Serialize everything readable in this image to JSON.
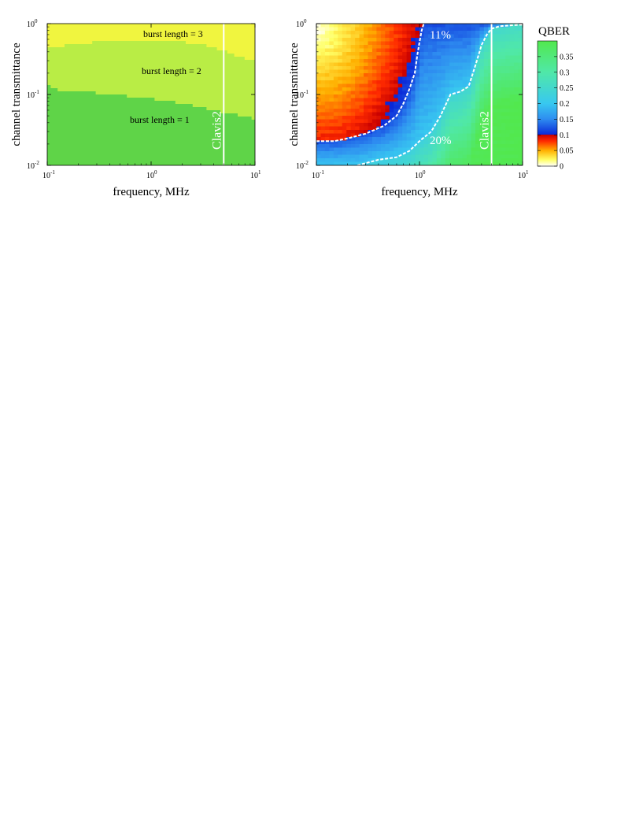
{
  "chart_data": [
    {
      "type": "heatmap",
      "title": "",
      "xlabel": "frequency, MHz",
      "ylabel": "channel transmittance",
      "x_scale": "log",
      "y_scale": "log",
      "xlim": [
        0.1,
        10
      ],
      "ylim": [
        0.01,
        1
      ],
      "x_ticks": [
        {
          "base": "10",
          "exp": "-1"
        },
        {
          "base": "10",
          "exp": "0"
        },
        {
          "base": "10",
          "exp": "1"
        }
      ],
      "y_ticks": [
        {
          "base": "10",
          "exp": "-2"
        },
        {
          "base": "10",
          "exp": "-1"
        },
        {
          "base": "10",
          "exp": "0"
        }
      ],
      "regions": [
        {
          "label": "burst length = 3",
          "color": "#f0f53f"
        },
        {
          "label": "burst length = 2",
          "color": "#b9ed45"
        },
        {
          "label": "burst length = 1",
          "color": "#5fd448"
        }
      ],
      "boundaries": {
        "burst2_burst3": {
          "x": [
            0.1,
            0.15,
            0.3,
            0.6,
            1.0,
            2.0,
            3.0,
            5.0,
            7.0,
            10.0
          ],
          "y": [
            0.45,
            0.5,
            0.55,
            0.6,
            0.55,
            0.55,
            0.5,
            0.4,
            0.33,
            0.3
          ]
        },
        "burst1_burst2": {
          "x": [
            0.1,
            0.12,
            0.2,
            0.4,
            0.8,
            1.5,
            3.0,
            5.0,
            7.0,
            10.0
          ],
          "y": [
            0.13,
            0.115,
            0.11,
            0.1,
            0.09,
            0.08,
            0.065,
            0.055,
            0.05,
            0.045
          ]
        }
      },
      "vertical_line": {
        "x": 5.0,
        "label": "Clavis2"
      }
    },
    {
      "type": "heatmap",
      "title": "",
      "xlabel": "frequency, MHz",
      "ylabel": "channel transmittance",
      "x_scale": "log",
      "y_scale": "log",
      "xlim": [
        0.1,
        10
      ],
      "ylim": [
        0.01,
        1
      ],
      "x_ticks": [
        {
          "base": "10",
          "exp": "-1"
        },
        {
          "base": "10",
          "exp": "0"
        },
        {
          "base": "10",
          "exp": "1"
        }
      ],
      "y_ticks": [
        {
          "base": "10",
          "exp": "-2"
        },
        {
          "base": "10",
          "exp": "-1"
        },
        {
          "base": "10",
          "exp": "0"
        }
      ],
      "colorbar": {
        "label": "QBER",
        "range": [
          0,
          0.4
        ],
        "ticks": [
          "0",
          "0.05",
          "0.1",
          "0.15",
          "0.2",
          "0.25",
          "0.3",
          "0.35"
        ],
        "tick_values": [
          0,
          0.05,
          0.1,
          0.15,
          0.2,
          0.25,
          0.3,
          0.35
        ],
        "stops": [
          {
            "v": 0.0,
            "color": "#ffffff"
          },
          {
            "v": 0.02,
            "color": "#ffff66"
          },
          {
            "v": 0.05,
            "color": "#ffb000"
          },
          {
            "v": 0.08,
            "color": "#ff2a00"
          },
          {
            "v": 0.1,
            "color": "#c80000"
          },
          {
            "v": 0.1001,
            "color": "#0a28d8"
          },
          {
            "v": 0.15,
            "color": "#2e8cf0"
          },
          {
            "v": 0.2,
            "color": "#38c8f0"
          },
          {
            "v": 0.3,
            "color": "#50e8a8"
          },
          {
            "v": 0.4,
            "color": "#52e84e"
          }
        ]
      },
      "contours": [
        {
          "label": "11%",
          "level": 0.11,
          "x": [
            0.1,
            0.15,
            0.2,
            0.3,
            0.45,
            0.6,
            0.7,
            0.8,
            0.9,
            0.95,
            1.0,
            1.05,
            1.1
          ],
          "y": [
            0.022,
            0.022,
            0.024,
            0.028,
            0.036,
            0.05,
            0.075,
            0.12,
            0.2,
            0.35,
            0.55,
            0.8,
            1.0
          ]
        },
        {
          "label": "20%",
          "level": 0.2,
          "x": [
            0.25,
            0.4,
            0.6,
            0.8,
            1.0,
            1.3,
            1.6,
            2.0,
            2.5,
            3.0,
            3.3,
            3.6,
            4.0,
            4.5,
            5.0,
            6.0,
            8.0,
            10.0
          ],
          "y": [
            0.01,
            0.012,
            0.013,
            0.016,
            0.022,
            0.03,
            0.05,
            0.1,
            0.11,
            0.13,
            0.2,
            0.3,
            0.5,
            0.7,
            0.85,
            0.92,
            0.95,
            0.97
          ]
        }
      ],
      "vertical_line": {
        "x": 5.0,
        "label": "Clavis2"
      }
    }
  ]
}
